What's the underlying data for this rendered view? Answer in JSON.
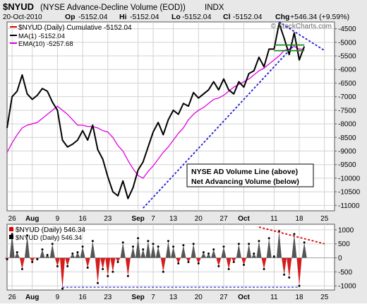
{
  "header": {
    "symbol": "$NYUD",
    "description": "(NYSE Advance-Decline Volume (EOD))",
    "exchange": "INDX",
    "date": "20-Oct-2010",
    "op_label": "Op",
    "op": "-5152.04",
    "hi_label": "Hi",
    "hi": "-5152.04",
    "lo_label": "Lo",
    "lo": "-5152.04",
    "cl_label": "Cl",
    "cl": "-5152.04",
    "chg_label": "Chg",
    "chg": "+546.34 (+9.59%)",
    "watermark": "© StockCharts.com"
  },
  "colors": {
    "price": "#000000",
    "ema": "#e100e1",
    "legend_price": "#dd0000",
    "trend_blue": "#1a1ad8",
    "trend_red": "#e00000",
    "hist_pos": "#555555",
    "hist_neg": "#d41e1e",
    "grid": "#d2d2d2",
    "flag": "#1c8a1c"
  },
  "annotation": {
    "line1": "NYSE AD Volume Line (above)",
    "line2": "Net Advancing Volume (below)"
  },
  "chart_data": [
    {
      "type": "line",
      "title": "$NYUD (Daily) Cumulative -5152.04",
      "legend": [
        {
          "label": "$NYUD (Daily) Cumulative -5152.04",
          "color": "#dd0000"
        },
        {
          "label": "MA(1) -5152.04",
          "color": "#000000"
        },
        {
          "label": "EMA(10) -5257.68",
          "color": "#e100e1"
        }
      ],
      "x_ticks": [
        {
          "label": "26",
          "i": 1
        },
        {
          "label": "Aug",
          "i": 5,
          "bold": true
        },
        {
          "label": "9",
          "i": 10
        },
        {
          "label": "16",
          "i": 15
        },
        {
          "label": "23",
          "i": 20
        },
        {
          "label": "Sep",
          "i": 26,
          "bold": true
        },
        {
          "label": "7",
          "i": 29
        },
        {
          "label": "13",
          "i": 33
        },
        {
          "label": "20",
          "i": 38
        },
        {
          "label": "27",
          "i": 43
        },
        {
          "label": "Oct",
          "i": 47,
          "bold": true
        },
        {
          "label": "11",
          "i": 53
        },
        {
          "label": "18",
          "i": 58
        },
        {
          "label": "25",
          "i": 63
        }
      ],
      "y_ticks": [
        -4500,
        -5000,
        -5500,
        -6000,
        -6500,
        -7000,
        -7500,
        -8000,
        -8500,
        -9000,
        -9500,
        -10000,
        -10500,
        -11000
      ],
      "ylim": [
        -11200,
        -4250
      ],
      "series": [
        {
          "name": "$NYUD Cumulative (MA(1))",
          "values": [
            -8150,
            -7000,
            -6800,
            -6200,
            -6900,
            -7100,
            -6950,
            -6700,
            -6800,
            -7200,
            -7500,
            -8600,
            -8850,
            -8750,
            -8600,
            -8250,
            -8600,
            -8050,
            -8950,
            -9300,
            -9950,
            -10500,
            -10650,
            -10100,
            -10750,
            -10350,
            -9700,
            -9400,
            -8850,
            -8300,
            -7950,
            -8400,
            -7850,
            -7500,
            -7650,
            -7250,
            -7350,
            -6850,
            -7050,
            -6900,
            -6750,
            -6450,
            -6750,
            -6350,
            -6750,
            -6900,
            -6450,
            -6650,
            -6150,
            -6050,
            -5550,
            -5900,
            -5250,
            -5250,
            -4300,
            -4850,
            -5450,
            -4650,
            -5650,
            -5150
          ]
        },
        {
          "name": "EMA(10)",
          "values": [
            -9050,
            -8700,
            -8400,
            -8150,
            -8050,
            -8000,
            -7950,
            -7800,
            -7650,
            -7500,
            -7350,
            -7500,
            -7650,
            -7850,
            -8050,
            -8050,
            -8100,
            -8100,
            -8150,
            -8250,
            -8300,
            -8500,
            -8800,
            -9000,
            -9350,
            -9650,
            -9900,
            -10000,
            -9750,
            -9550,
            -9300,
            -9050,
            -8850,
            -8600,
            -8350,
            -8150,
            -7850,
            -7650,
            -7500,
            -7400,
            -7250,
            -7100,
            -7050,
            -6950,
            -6800,
            -6650,
            -6550,
            -6450,
            -6350,
            -6200,
            -6050,
            -5950,
            -5800,
            -5650,
            -5500,
            -5300,
            -5250,
            -5150,
            -5250,
            -5250
          ]
        }
      ],
      "annotations": [
        {
          "type": "trendline",
          "color": "blue-dashed",
          "from": [
            27,
            -11100
          ],
          "to": [
            57,
            -5100
          ]
        },
        {
          "type": "trendline",
          "color": "blue-dashed",
          "from": [
            54,
            -4250
          ],
          "to": [
            63,
            -5300
          ]
        },
        {
          "type": "flag",
          "color": "green",
          "at_value": -5100
        }
      ]
    },
    {
      "type": "bar",
      "title": "$NYUD (Daily) 546.34",
      "legend": [
        {
          "label": "$NYUD (Daily) 546.34",
          "color": "#dd0000"
        },
        {
          "label": "$NYUD (Daily) 546.34",
          "color": "#000000"
        }
      ],
      "y_ticks": [
        1000,
        500,
        0,
        -500,
        -1000
      ],
      "ylim": [
        -1150,
        1200
      ],
      "values": [
        -50,
        850,
        200,
        -400,
        800,
        -150,
        -50,
        300,
        100,
        500,
        -300,
        -1100,
        -300,
        150,
        200,
        400,
        -350,
        600,
        -900,
        -400,
        -650,
        -500,
        -150,
        550,
        -650,
        400,
        700,
        300,
        600,
        500,
        400,
        -500,
        600,
        400,
        -200,
        450,
        -150,
        500,
        -200,
        200,
        150,
        300,
        -300,
        400,
        -400,
        -150,
        500,
        -250,
        500,
        150,
        600,
        -400,
        700,
        50,
        950,
        -600,
        -700,
        850,
        -1000,
        550
      ],
      "annotations": [
        {
          "type": "trendline",
          "color": "red-dashed",
          "from": [
            50,
            1100
          ],
          "to": [
            63,
            500
          ]
        },
        {
          "type": "hline",
          "color": "blue-dashed",
          "value": -1050
        }
      ]
    }
  ]
}
